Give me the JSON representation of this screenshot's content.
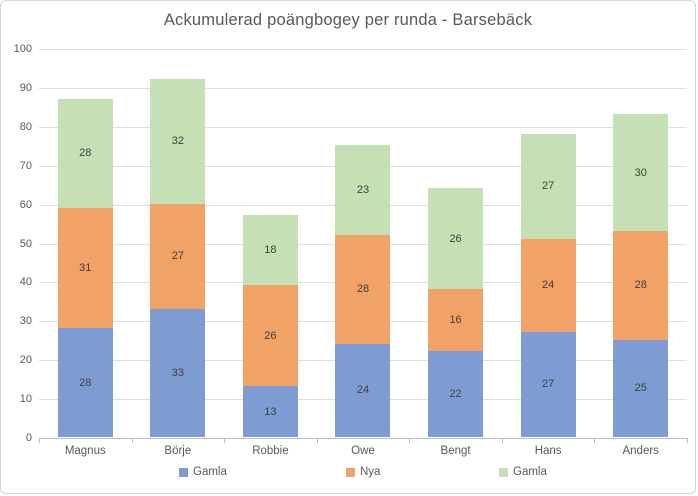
{
  "chart_data": {
    "type": "bar",
    "stacked": true,
    "title": "Ackumulerad poängbogey per runda - Barsebäck",
    "categories": [
      "Magnus",
      "Börje",
      "Robbie",
      "Owe",
      "Bengt",
      "Hans",
      "Anders"
    ],
    "series": [
      {
        "name": "Gamla",
        "color": "#7E9CD2",
        "values": [
          28,
          33,
          13,
          24,
          22,
          27,
          25
        ]
      },
      {
        "name": "Nya",
        "color": "#F1A266",
        "values": [
          31,
          27,
          26,
          28,
          16,
          24,
          28
        ]
      },
      {
        "name": "Gamla",
        "color": "#C5E0B4",
        "values": [
          28,
          32,
          18,
          23,
          26,
          27,
          30
        ]
      }
    ],
    "totals": [
      87,
      92,
      57,
      75,
      64,
      78,
      83
    ],
    "xlabel": "",
    "ylabel": "",
    "ylim": [
      0,
      100
    ],
    "ytick_step": 10,
    "grid": true,
    "data_labels": true,
    "legend_position": "bottom",
    "legend_entries": [
      "Gamla",
      "Nya",
      "Gamla"
    ]
  },
  "colors": {
    "title_text": "#595959",
    "axis_text": "#595959",
    "gridline": "#dedede",
    "axis_line": "#bfbfbf",
    "frame_border": "#d6d6d6",
    "data_label_text": "#3f3f3f"
  }
}
